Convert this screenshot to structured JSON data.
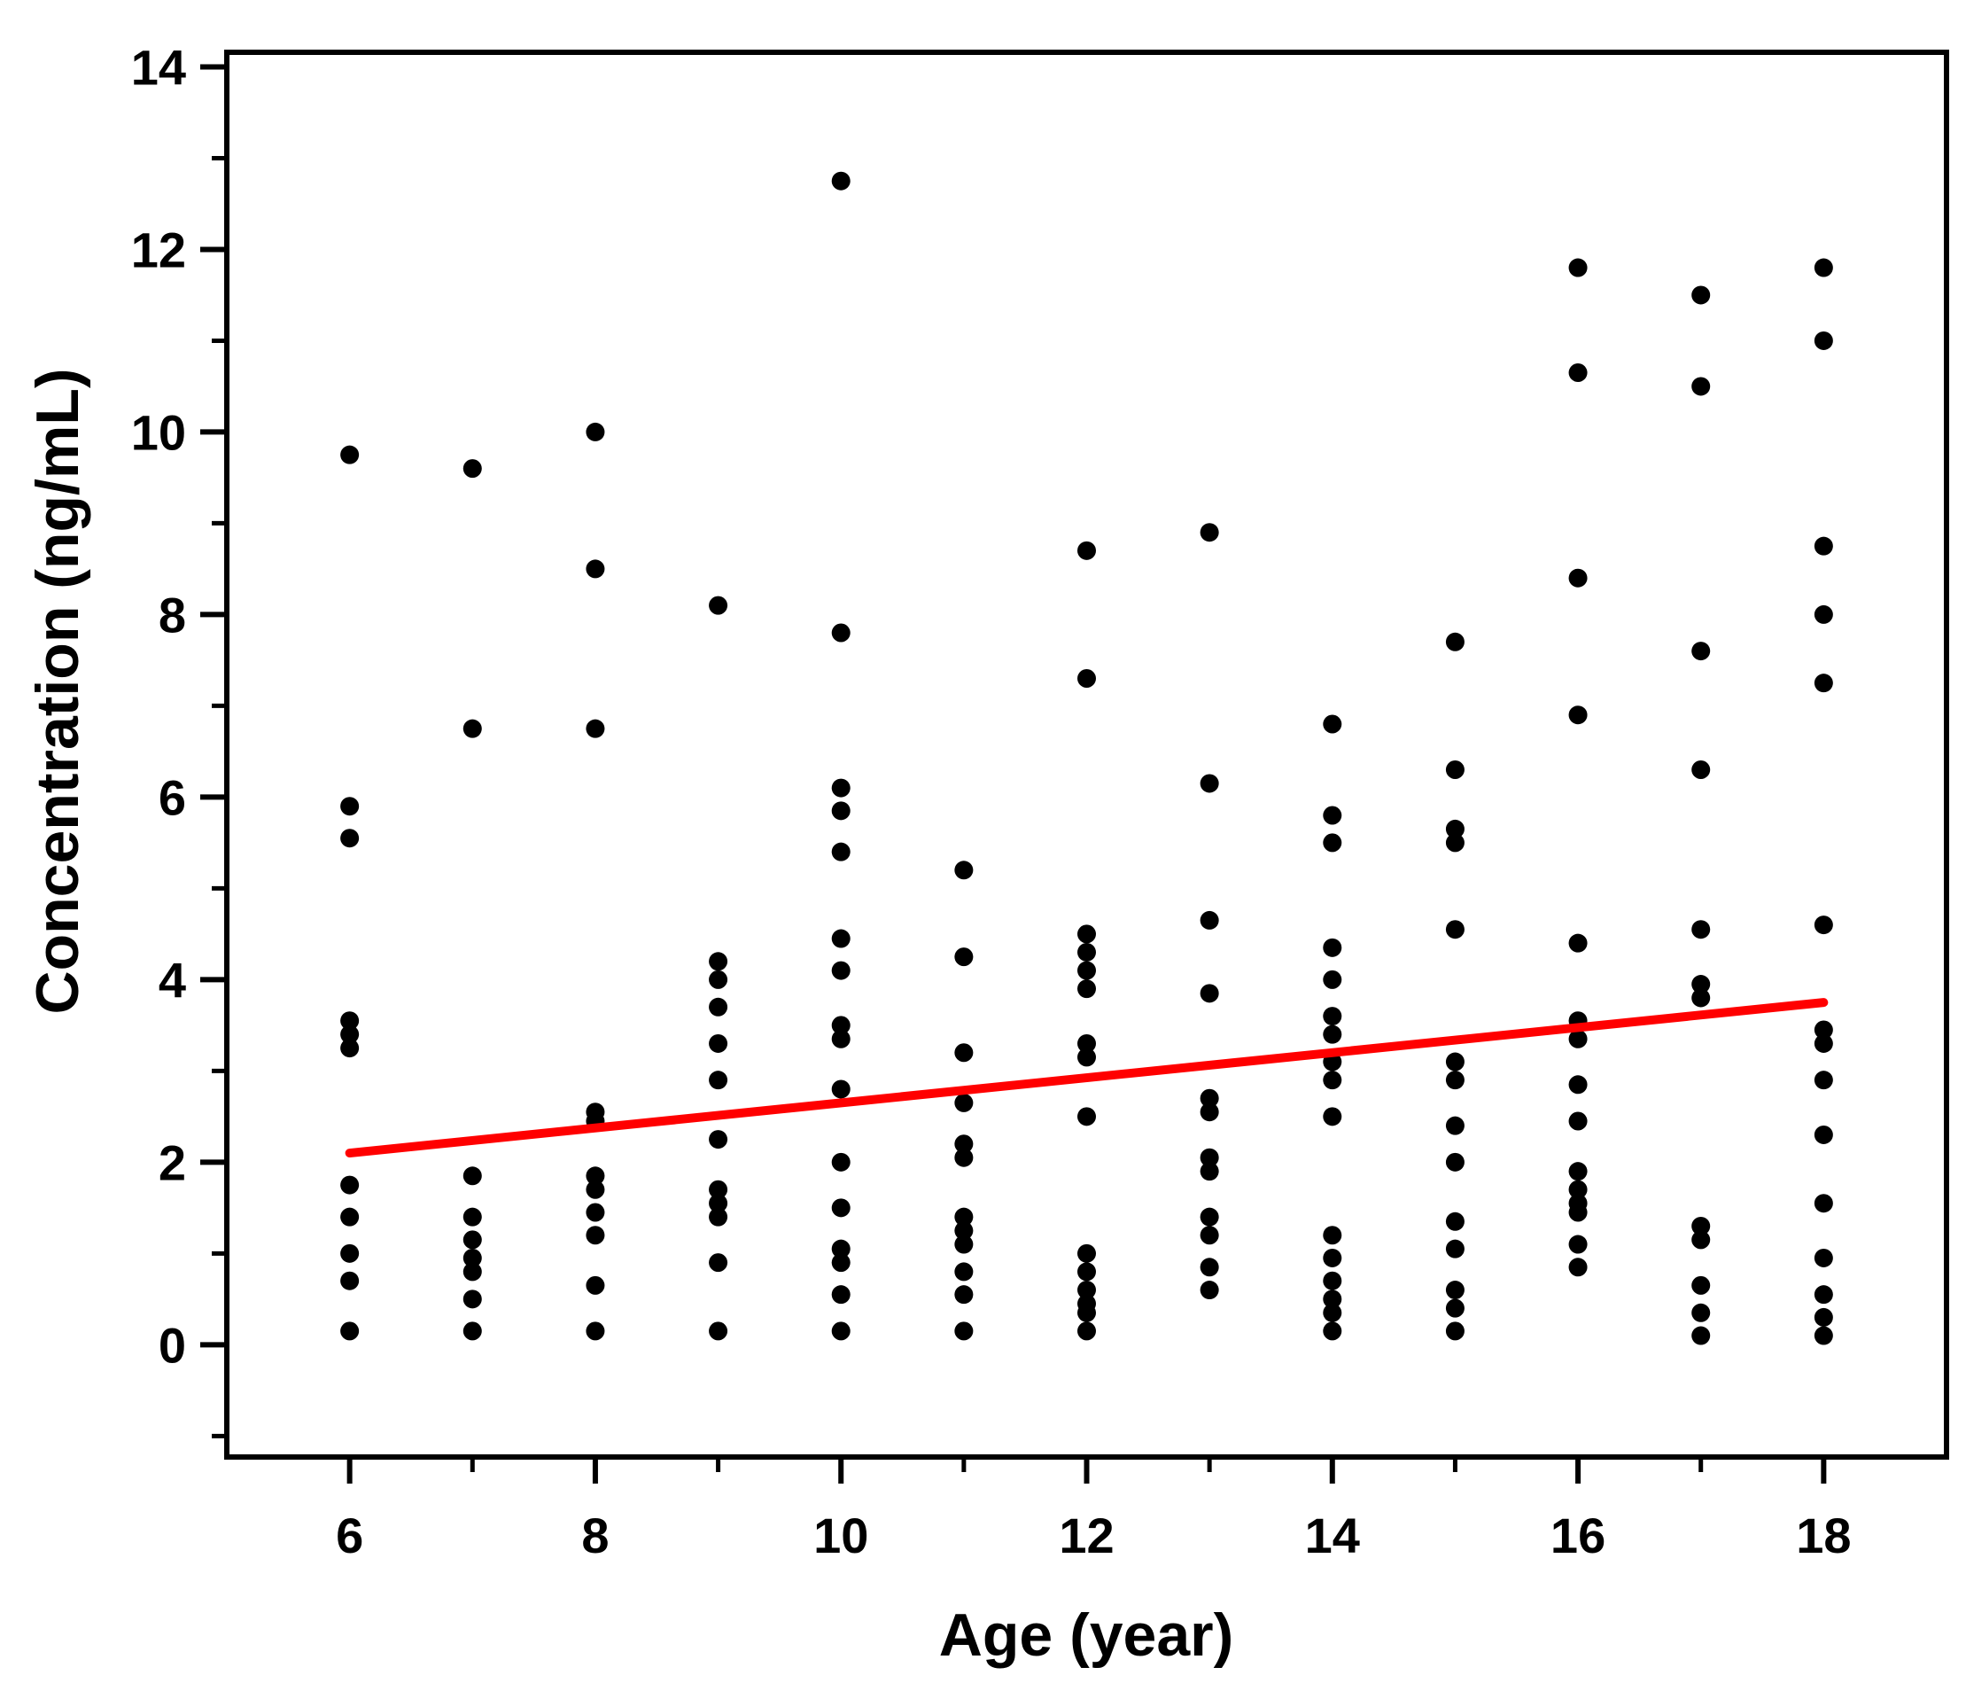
{
  "chart_data": {
    "type": "scatter",
    "title": "",
    "xlabel": "Age (year)",
    "ylabel": "Concentration (ng/mL)",
    "xlim": [
      5,
      19
    ],
    "ylim": [
      -1.23,
      14.16
    ],
    "x_major_ticks": [
      6,
      8,
      10,
      12,
      14,
      16,
      18
    ],
    "x_minor_ticks": [
      7,
      9,
      11,
      13,
      15,
      17
    ],
    "y_major_ticks": [
      0,
      2,
      4,
      6,
      8,
      10,
      12,
      14
    ],
    "y_minor_ticks": [
      -1,
      1,
      3,
      5,
      7,
      9,
      11,
      13
    ],
    "grid": "off",
    "legend": "none",
    "point_color": "#000000",
    "frame_color": "#000000",
    "background_color": "#ffffff",
    "trend_line": {
      "color": "#ff0000",
      "x1": 6,
      "y1": 2.1,
      "x2": 18,
      "y2": 3.75
    },
    "series": [
      {
        "age": 6,
        "values": [
          9.75,
          5.9,
          5.55,
          3.55,
          3.4,
          3.25,
          1.75,
          1.4,
          1.0,
          0.7,
          0.15
        ]
      },
      {
        "age": 7,
        "values": [
          9.6,
          6.75,
          1.85,
          1.4,
          1.15,
          0.95,
          0.8,
          0.5,
          0.15
        ]
      },
      {
        "age": 8,
        "values": [
          10.0,
          8.5,
          6.75,
          2.55,
          2.45,
          1.85,
          1.7,
          1.45,
          1.2,
          0.65,
          0.15
        ]
      },
      {
        "age": 9,
        "values": [
          8.1,
          4.2,
          4.0,
          3.7,
          3.3,
          2.9,
          2.25,
          1.7,
          1.55,
          1.4,
          0.9,
          0.15
        ]
      },
      {
        "age": 10,
        "values": [
          12.75,
          7.8,
          6.1,
          5.85,
          5.4,
          4.45,
          4.1,
          3.5,
          3.35,
          2.8,
          2.0,
          1.5,
          1.05,
          0.9,
          0.55,
          0.15
        ]
      },
      {
        "age": 11,
        "values": [
          5.2,
          4.25,
          3.2,
          2.65,
          2.2,
          2.05,
          1.4,
          1.25,
          1.1,
          0.8,
          0.55,
          0.15
        ]
      },
      {
        "age": 12,
        "values": [
          8.7,
          7.3,
          4.5,
          4.3,
          4.1,
          3.9,
          3.3,
          3.15,
          2.5,
          1.0,
          0.8,
          0.6,
          0.45,
          0.35,
          0.15
        ]
      },
      {
        "age": 13,
        "values": [
          8.9,
          6.15,
          4.65,
          3.85,
          2.7,
          2.55,
          2.05,
          1.9,
          1.4,
          1.2,
          0.85,
          0.6
        ]
      },
      {
        "age": 14,
        "values": [
          6.8,
          5.8,
          5.5,
          4.35,
          4.0,
          3.6,
          3.4,
          3.1,
          2.9,
          2.5,
          1.2,
          0.95,
          0.7,
          0.5,
          0.35,
          0.15
        ]
      },
      {
        "age": 15,
        "values": [
          7.7,
          6.3,
          5.65,
          5.5,
          4.55,
          3.1,
          2.9,
          2.4,
          2.0,
          1.35,
          1.05,
          0.6,
          0.4,
          0.15
        ]
      },
      {
        "age": 16,
        "values": [
          11.8,
          10.65,
          8.4,
          6.9,
          4.4,
          3.55,
          3.35,
          2.85,
          2.45,
          1.9,
          1.7,
          1.55,
          1.45,
          1.1,
          0.85
        ]
      },
      {
        "age": 17,
        "values": [
          11.5,
          10.5,
          7.6,
          6.3,
          4.55,
          3.95,
          3.8,
          1.3,
          1.15,
          0.65,
          0.35,
          0.1
        ]
      },
      {
        "age": 18,
        "values": [
          11.8,
          11.0,
          8.75,
          8.0,
          7.25,
          4.6,
          3.45,
          3.3,
          2.9,
          2.3,
          1.55,
          0.95,
          0.55,
          0.3,
          0.1
        ]
      }
    ]
  }
}
